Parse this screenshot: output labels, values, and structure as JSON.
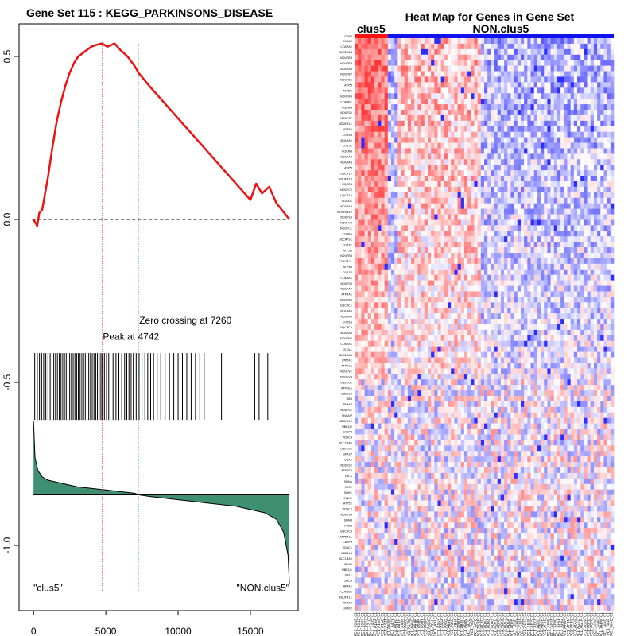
{
  "colors": {
    "es_curve": "#ee1111",
    "peak_line": "#cc2222",
    "zero_line": "#22bb22",
    "metric_fill": "#3f8f72",
    "hits": "#000000",
    "heat_high": "#ee1111",
    "heat_low": "#1a1ae6",
    "bar_clus5": "#ff1111",
    "bar_non": "#1111ee"
  },
  "chart_data": [
    {
      "type": "line",
      "title": "Gene Set  115 : KEGG_PARKINSONS_DISEASE",
      "xlabel": "",
      "ylabel": "",
      "xlim": [
        -1000,
        18300
      ],
      "ylim": [
        -1.2,
        0.6
      ],
      "xticks": [
        0,
        5000,
        10000,
        15000
      ],
      "xtick_labels": [
        "0",
        "5000",
        "10000",
        "15000"
      ],
      "yticks": [
        0.5,
        0.0,
        -0.5,
        -1.0
      ],
      "ytick_labels": [
        "0.5",
        "0.0",
        "-0.5",
        "-1.0"
      ],
      "n_genes": 17700,
      "series": [
        {
          "name": "running enrichment score",
          "x": [
            0,
            250,
            400,
            600,
            800,
            1000,
            1300,
            1600,
            1900,
            2200,
            2500,
            2800,
            3100,
            3400,
            3700,
            4000,
            4300,
            4742,
            5100,
            5600,
            6000,
            6500,
            7000,
            7260,
            8000,
            9000,
            10000,
            11000,
            12000,
            13000,
            14000,
            15000,
            15400,
            15800,
            16300,
            16800,
            17700
          ],
          "y": [
            0.0,
            -0.02,
            0.02,
            0.03,
            0.08,
            0.13,
            0.22,
            0.3,
            0.36,
            0.41,
            0.45,
            0.48,
            0.5,
            0.51,
            0.52,
            0.53,
            0.535,
            0.54,
            0.53,
            0.54,
            0.52,
            0.5,
            0.47,
            0.45,
            0.41,
            0.36,
            0.31,
            0.26,
            0.21,
            0.16,
            0.11,
            0.06,
            0.11,
            0.08,
            0.1,
            0.05,
            0.0
          ]
        }
      ],
      "peak": {
        "x": 4742,
        "label": "Peak at 4742"
      },
      "zero_crossing": {
        "x": 7260,
        "label": "Zero crossing at 7260"
      },
      "hit_positions": [
        80,
        260,
        410,
        560,
        700,
        850,
        1000,
        1150,
        1280,
        1400,
        1520,
        1650,
        1780,
        1900,
        2020,
        2140,
        2260,
        2380,
        2500,
        2620,
        2740,
        2860,
        2980,
        3100,
        3220,
        3340,
        3460,
        3580,
        3700,
        3820,
        3940,
        4060,
        4180,
        4300,
        4420,
        4540,
        4660,
        4742,
        4900,
        5050,
        5200,
        5350,
        5500,
        5700,
        5900,
        6100,
        6300,
        6450,
        6600,
        6750,
        6900,
        7100,
        7300,
        7500,
        7700,
        7900,
        8100,
        8300,
        8550,
        8800,
        9100,
        9400,
        9700,
        10000,
        10300,
        10600,
        10900,
        11200,
        11500,
        11800,
        13000,
        15300,
        15600,
        16200
      ],
      "metric": {
        "x": [
          0,
          100,
          300,
          600,
          1000,
          2000,
          3000,
          4000,
          5000,
          6000,
          7000,
          7260,
          8000,
          9000,
          10000,
          11000,
          12000,
          13000,
          14000,
          15000,
          16000,
          16800,
          17300,
          17600,
          17700
        ],
        "y": [
          -0.62,
          -0.73,
          -0.77,
          -0.79,
          -0.8,
          -0.81,
          -0.82,
          -0.825,
          -0.83,
          -0.835,
          -0.84,
          -0.845,
          -0.85,
          -0.855,
          -0.86,
          -0.865,
          -0.87,
          -0.875,
          -0.88,
          -0.89,
          -0.9,
          -0.92,
          -0.96,
          -1.03,
          -1.12
        ],
        "baseline": -0.845
      },
      "class_labels": {
        "left": "\"clus5\"",
        "right": "\"NON.clus5\""
      }
    },
    {
      "type": "heatmap",
      "title": "Heat Map for Genes in Gene Set",
      "groups": [
        {
          "name": "clus5",
          "n": 10
        },
        {
          "name": "NON.clus5",
          "n": 68
        }
      ],
      "genes": [
        "Class",
        "COX6C",
        "COX7A2",
        "SLC25A4",
        "NDUFB8",
        "NDUFB6",
        "NDUFA3",
        "NDUFB7",
        "NDUFB1",
        "ATP5I",
        "ATP5O",
        "NDUFB9",
        "COX6B1",
        "UQCRH",
        "NDUFS5",
        "NDUFS7",
        "NDUFA11",
        "ATP5B",
        "COX5B",
        "NDUFA2",
        "COX5C",
        "UQCRQ",
        "NDUFA4",
        "NDUFA6",
        "ATP5J",
        "UQCR11",
        "NDUFB10",
        "UQCRB",
        "NDUFC2",
        "UQCR10",
        "COX4I1",
        "NDUFS8",
        "NDUFA4L2",
        "NDUFS6",
        "NDUFV2",
        "NDUFC1",
        "COX8A",
        "UQCRFS1",
        "COX7C",
        "ATP5D",
        "NDUFB3",
        "COX7A2L",
        "ATP5H",
        "COX7B",
        "COX6A1",
        "NDUFS3",
        "NDUFA7",
        "ATP5A1",
        "NDUFB5",
        "UQCRC1",
        "NDUFA5",
        "NDUFA9",
        "COX5A",
        "UQCRC2",
        "NDUFA8",
        "NDUFB4",
        "COX7A1",
        "UCHL1",
        "SLC25A6",
        "ATP5F1",
        "ATP5C1",
        "NDUFV1",
        "NDUFV3",
        "UBE2G1",
        "ATP5G1",
        "UBE2L3",
        "UBB",
        "PARK7",
        "NDUFS1",
        "SNCAIP",
        "NDUFA10",
        "UBE2J2",
        "CASP3",
        "VDAC3",
        "SLC25A5",
        "UBE2G2",
        "GPR37",
        "UBA1",
        "NDUFS2",
        "ATP5G3",
        "CYCS",
        "SDHA",
        "CYC1",
        "SDHC",
        "PINK1",
        "ATP5E",
        "VDAC2",
        "NDUFS4",
        "SDHB",
        "PRKN",
        "UQCRC3",
        "ATP5A1L",
        "CASP9",
        "VDAC1",
        "UBE2L6",
        "SLC18A2",
        "SDHD",
        "UBE2J1",
        "UBL1",
        "SNCA",
        "APAF1",
        "COX6B2",
        "NDUFB11",
        "PARK2",
        "LRRK2"
      ],
      "samples": [
        "TPC1_3043_01",
        "TPC1_6042_01",
        "TPC1_3087_01",
        "TPC1_5087_01",
        "TPC1_7210_01",
        "TPC1_7435_01",
        "TPC1_A1AA_01",
        "TPC1_A1A9_01",
        "TPC1_A1A8_01",
        "TPC1_A4ZT_01",
        "TPC1_A4ZM_01",
        "TPC1_A4YY_01",
        "TPC1_A4BG_01",
        "TPC1_A4BH_01",
        "TPC1_A4BF_01",
        "TPC1_A4C8_01",
        "TPC1_A57W_01",
        "TPC1_A9HQ_01",
        "TPC1_A9HR_01",
        "TPC1_A9HS_01",
        "TPC1_A9HT_01",
        "TPC1_AXDF_01",
        "TPC1_AXDG_01",
        "TPC1_AY1H_01",
        "TPC1_AY1I_01",
        "TPC1_AAS3_01",
        "TPC1_AAS4_01",
        "TPC1_AAS5_01",
        "TPC1_AB6D_01",
        "TPC1_AB6E_01",
        "TPC1_AB6F_01",
        "TPC1_ABBT_01",
        "TPC1_ABBU_01",
        "TPC1_ABBV_01",
        "TPC1_ACJO_01",
        "TPC1_ACJP_01",
        "TPC1_ACJQ_01",
        "TPC1_ACKN_01",
        "TPC1_ACKO_01",
        "TPC1_AD03_01",
        "TPC1_AD04_01",
        "TPC1_AD05_01",
        "TPC1_AD9D_01",
        "TPC1_AD9E_01",
        "TPC1_ADE6_01",
        "TPC1_ADE7_01",
        "TPC1_ADEA_01",
        "TPC1_ADEB_01",
        "TPC1_ADJ0_01",
        "TPC1_ADJ1_01",
        "TPC1_ADJ2_01",
        "TPC1_AE27_01",
        "TPC1_AE28_01",
        "TPC1_AE29_01",
        "TPC1_AECF_01",
        "TPC1_AECG_01",
        "TPC1_AECH_01",
        "TPC1_AF0D_01",
        "TPC1_AF0E_01",
        "TPC1_AF0F_01",
        "TPC1_AF60_01",
        "TPC1_AF61_01",
        "TPC1_AF62_01",
        "TPC1_AFBM_01",
        "TPC1_AFBN_01",
        "TPC1_AFBO_01",
        "TPC1_AG1P_01",
        "TPC1_AG1Q_01",
        "TPC1_AG1R_01",
        "TPC1_AGYA_01",
        "TPC1_AGYB_01",
        "TPC1_AGYC_01",
        "TPC1_AHVI_01",
        "TPC1_AHVJ_01",
        "TPC1_AHVK_01",
        "TPC1_AI4O_01",
        "TPC1_AI4P_01",
        "TPC1_AI4Q_01"
      ]
    }
  ]
}
